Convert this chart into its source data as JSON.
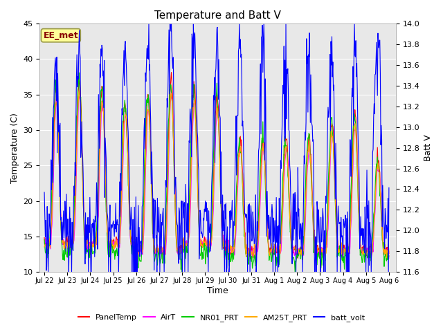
{
  "title": "Temperature and Batt V",
  "xlabel": "Time",
  "ylabel_left": "Temperature (C)",
  "ylabel_right": "Batt V",
  "annotation_text": "EE_met",
  "ylim_left": [
    10,
    45
  ],
  "ylim_right": [
    11.6,
    14.0
  ],
  "yticks_left": [
    10,
    15,
    20,
    25,
    30,
    35,
    40,
    45
  ],
  "yticks_right": [
    11.6,
    11.8,
    12.0,
    12.2,
    12.4,
    12.6,
    12.8,
    13.0,
    13.2,
    13.4,
    13.6,
    13.8,
    14.0
  ],
  "fig_bg_color": "#ffffff",
  "plot_bg_color": "#e8e8e8",
  "grid_color": "#ffffff",
  "line_colors": {
    "PanelTemp": "#ff0000",
    "AirT": "#ff00ff",
    "NR01_PRT": "#00cc00",
    "AM25T_PRT": "#ffaa00",
    "batt_volt": "#0000ff"
  },
  "xtick_labels": [
    "Jul 22",
    "Jul 23",
    "Jul 24",
    "Jul 25",
    "Jul 26",
    "Jul 27",
    "Jul 28",
    "Jul 29",
    "Jul 30",
    "Jul 31",
    "Aug 1",
    "Aug 2",
    "Aug 3",
    "Aug 4",
    "Aug 5",
    "Aug 6"
  ],
  "annotation_box_color": "#ffff99",
  "annotation_text_color": "#880000",
  "annotation_border_color": "#999944"
}
